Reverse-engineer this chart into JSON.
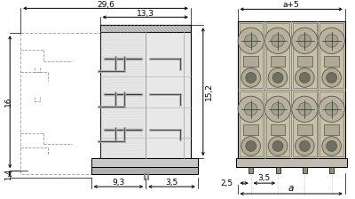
{
  "bg_color": "#ffffff",
  "line_color": "#000000",
  "gray_fill": "#d8d8d8",
  "gray_light": "#e8e8e8",
  "gray_dark": "#b0b0b0",
  "gray_med": "#c8c8c8",
  "hatch_color": "#aaaaaa",
  "tan_fill": "#d0c8b0",
  "tan_dark": "#b8b098",
  "tan_med": "#c8c0a0",
  "dims": {
    "d296": "29,6",
    "d133": "13,3",
    "d16": "16",
    "d152": "15,2",
    "d14": "1,4",
    "d93": "9,3",
    "d35a": "3,5",
    "da5": "a+5",
    "da": "a",
    "d25": "2,5",
    "d35b": "3,5"
  },
  "font_size": 6.5
}
